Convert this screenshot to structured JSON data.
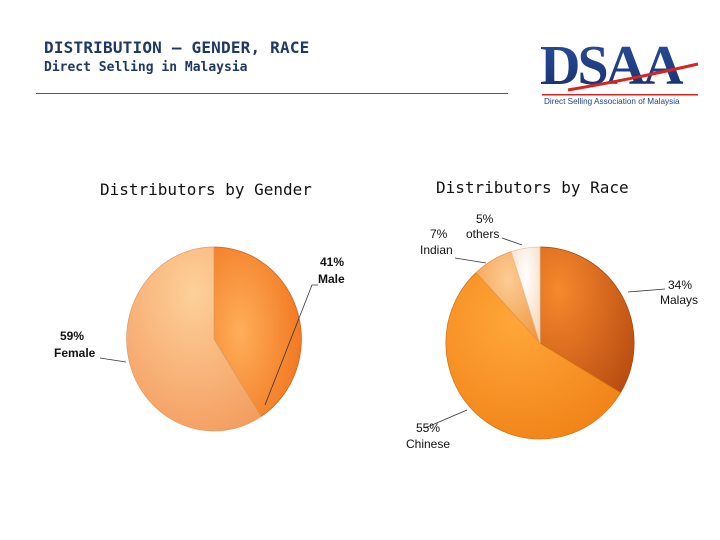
{
  "header": {
    "title": "DISTRIBUTION – GENDER, RACE",
    "subtitle": "Direct Selling in Malaysia"
  },
  "logo": {
    "letters": "DSAA",
    "tagline": "Direct Selling Association of Malaysia",
    "colors": {
      "primary": "#1f3f8c",
      "accent": "#d8231f"
    }
  },
  "chart_data": [
    {
      "type": "pie",
      "title": "Distributors by Gender",
      "slices": [
        {
          "label": "Male",
          "value": 41,
          "pct_label": "41%",
          "color": "#f57a1f"
        },
        {
          "label": "Female",
          "value": 59,
          "pct_label": "59%",
          "color": "#f8b16b"
        }
      ]
    },
    {
      "type": "pie",
      "title": "Distributors by Race",
      "slices": [
        {
          "label": "Malays",
          "value": 34,
          "pct_label": "34%",
          "color": "#e8651c"
        },
        {
          "label": "Chinese",
          "value": 55,
          "pct_label": "55%",
          "color": "#f7931e"
        },
        {
          "label": "Indian",
          "value": 7,
          "pct_label": "7%",
          "color": "#f5a865"
        },
        {
          "label": "others",
          "value": 5,
          "pct_label": "5%",
          "color": "#fde6d2"
        }
      ]
    }
  ]
}
